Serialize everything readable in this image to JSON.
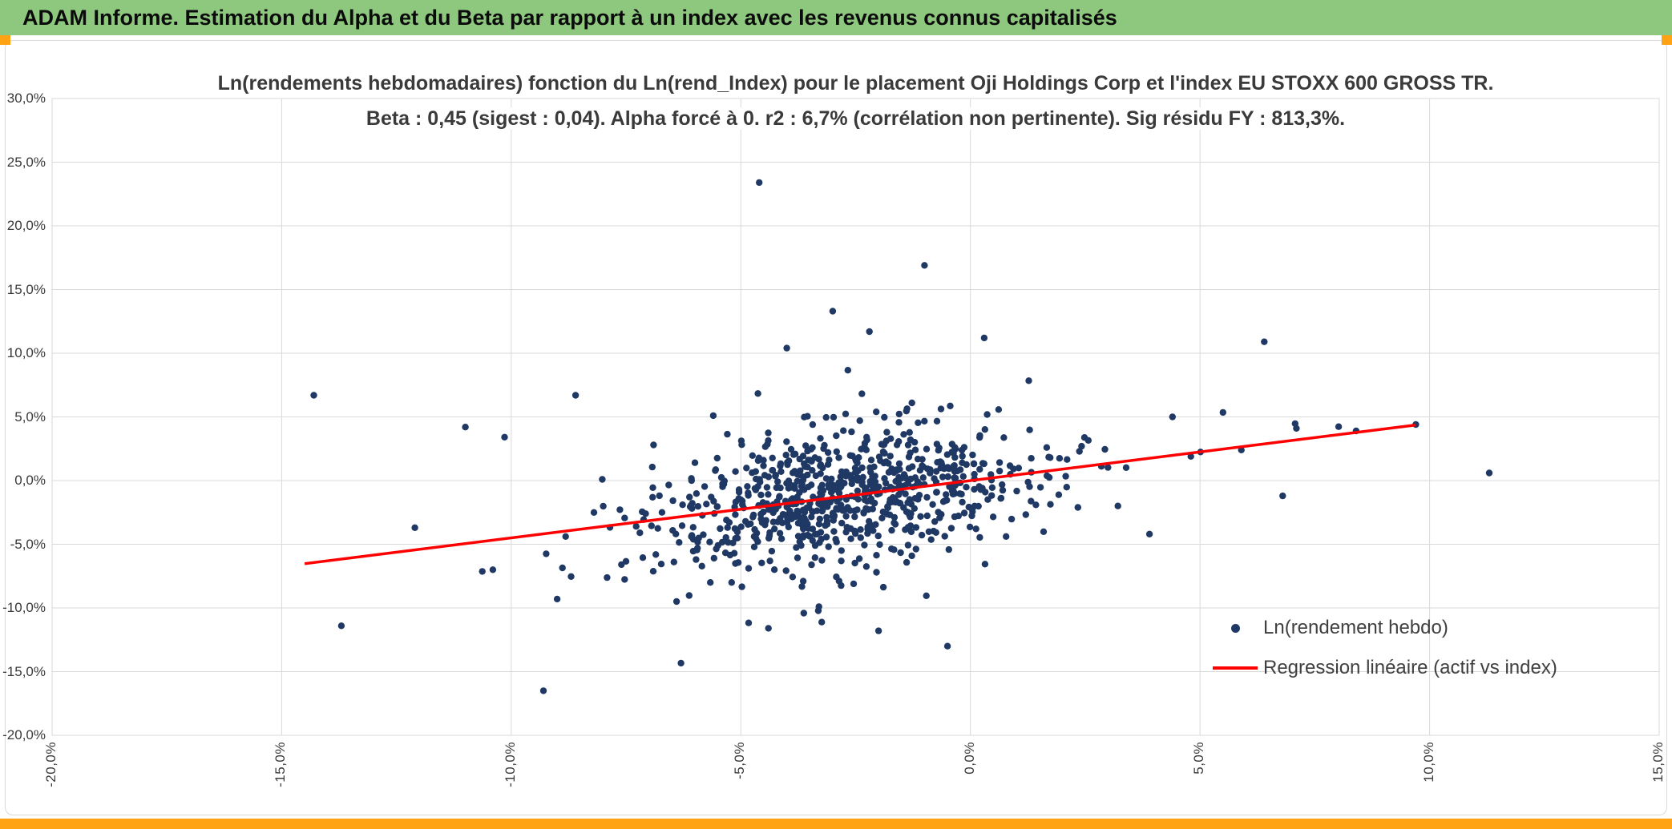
{
  "window": {
    "header_title": "ADAM Informe. Estimation du Alpha et du Beta par rapport à un index avec les revenus connus capitalisés",
    "colors": {
      "header_green": "#8DC87E",
      "accent_orange": "#FFA314"
    }
  },
  "chart_data": {
    "type": "scatter",
    "title_lines": [
      "Ln(rendements hebdomadaires) fonction du Ln(rend_Index) pour le placement Oji Holdings Corp et l'index EU STOXX 600 GROSS TR.",
      "Beta : 0,45 (sigest : 0,04). Alpha forcé à 0. r2 : 6,7% (corrélation non pertinente). Sig résidu FY : 813,3%."
    ],
    "stats": {
      "beta": "0,45",
      "sigest": "0,04",
      "alpha": "forcé à 0",
      "r2": "6,7%",
      "correlation": "non pertinente",
      "sig_residu_fy": "813,3%"
    },
    "placement": "Oji Holdings Corp",
    "index": "EU STOXX 600 GROSS TR",
    "x_axis": {
      "min": -20,
      "max": 15,
      "ticks": [
        -20,
        -15,
        -10,
        -5,
        0,
        5,
        10,
        15
      ],
      "labels": [
        "-20,0%",
        "-15,0%",
        "-10,0%",
        "-5,0%",
        "0,0%",
        "5,0%",
        "10,0%",
        "15,0%"
      ]
    },
    "y_axis": {
      "min": -20,
      "max": 30,
      "ticks": [
        30,
        25,
        20,
        15,
        10,
        5,
        0,
        -5,
        -10,
        -15,
        -20
      ],
      "labels": [
        "30,0%",
        "25,0%",
        "20,0%",
        "15,0%",
        "10,0%",
        "5,0%",
        "0,0%",
        "-5,0%",
        "-10,0%",
        "-15,0%",
        "-20,0%"
      ]
    },
    "grid": true,
    "colors": {
      "point": "#1F3864",
      "line": "#FF0000",
      "grid": "#D9D9D9",
      "text": "#3A3A3A"
    },
    "legend": {
      "position": "inside-right",
      "items": [
        {
          "label": "Ln(rendement hebdo)",
          "marker": "point",
          "color": "#1F3864"
        },
        {
          "label": "Regression linéaire (actif vs index)",
          "marker": "line",
          "color": "#FF0000"
        }
      ]
    },
    "regression_line": {
      "slope": 0.45,
      "intercept": 0,
      "x_start": -14.5,
      "x_end": 9.7
    },
    "outlier_points": [
      [
        -14.3,
        6.7
      ],
      [
        -13.7,
        -11.4
      ],
      [
        -12.1,
        -3.7
      ],
      [
        -11.0,
        4.2
      ],
      [
        -10.4,
        -7.0
      ],
      [
        -9.3,
        -16.5
      ],
      [
        -9.0,
        -9.3
      ],
      [
        -8.6,
        6.7
      ],
      [
        -8.2,
        -2.5
      ],
      [
        -7.6,
        -6.6
      ],
      [
        -7.2,
        -4.1
      ],
      [
        -6.9,
        2.8
      ],
      [
        -6.4,
        -9.5
      ],
      [
        -6.0,
        1.4
      ],
      [
        -5.6,
        5.1
      ],
      [
        -5.2,
        -8.0
      ],
      [
        -4.6,
        23.4
      ],
      [
        -4.0,
        10.4
      ],
      [
        -3.0,
        13.3
      ],
      [
        -2.2,
        11.7
      ],
      [
        -1.0,
        16.9
      ],
      [
        0.3,
        11.2
      ],
      [
        6.4,
        10.9
      ],
      [
        -0.5,
        -13.0
      ],
      [
        -4.4,
        -11.6
      ],
      [
        -2.0,
        -11.8
      ],
      [
        -3.3,
        -9.9
      ],
      [
        9.7,
        4.4
      ],
      [
        8.4,
        3.9
      ],
      [
        7.1,
        4.1
      ],
      [
        11.3,
        0.6
      ],
      [
        5.9,
        2.4
      ],
      [
        6.8,
        -1.2
      ],
      [
        4.8,
        1.9
      ],
      [
        3.9,
        -4.2
      ],
      [
        4.4,
        5.0
      ]
    ],
    "dense_cluster_estimate": {
      "count": 800,
      "seed": 42,
      "x_mean": -2.7,
      "x_std": 1.9,
      "x_std_tail": 3.5,
      "tail_frac": 0.13,
      "resid_std": 2.4,
      "resid_std_tail": 4.5
    }
  }
}
